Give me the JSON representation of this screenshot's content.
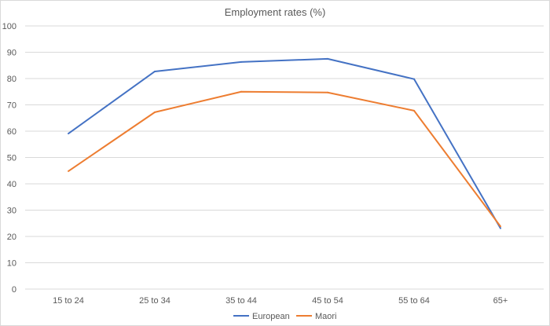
{
  "chart_data": {
    "type": "line",
    "title": "Employment rates (%)",
    "xlabel": "",
    "ylabel": "",
    "categories": [
      "15 to 24",
      "25 to 34",
      "35 to 44",
      "45 to 54",
      "55 to 64",
      "65+"
    ],
    "ylim": [
      0,
      100
    ],
    "yticks": [
      0,
      10,
      20,
      30,
      40,
      50,
      60,
      70,
      80,
      90,
      100
    ],
    "grid": true,
    "legend": "bottom",
    "series": [
      {
        "name": "European",
        "color": "#4472c4",
        "values": [
          59.1,
          82.7,
          86.3,
          87.5,
          79.8,
          23.1
        ]
      },
      {
        "name": "Maori",
        "color": "#ed7d31",
        "values": [
          44.8,
          67.2,
          75.0,
          74.7,
          67.8,
          23.8
        ]
      }
    ]
  }
}
